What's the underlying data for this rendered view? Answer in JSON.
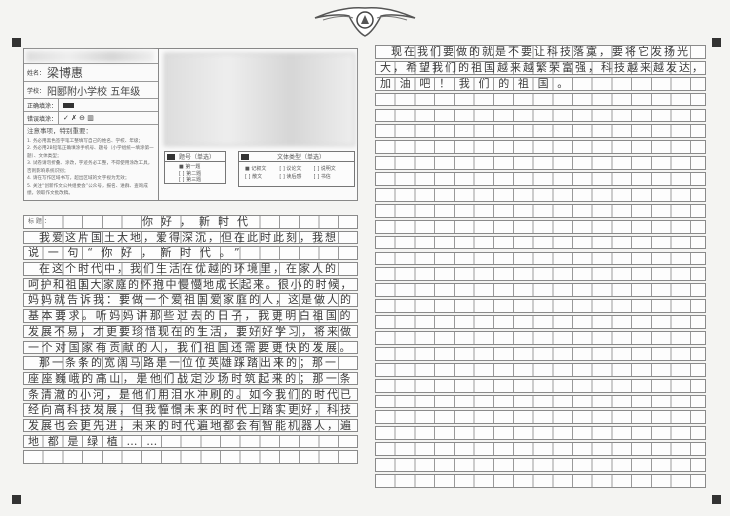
{
  "header": {
    "name_label": "姓名：",
    "name_value": "梁博惠",
    "school_label": "学校：",
    "school_value": "阳郾附小学校 五年级",
    "correct_label": "正确填涂：",
    "wrong_label": "错误填涂：",
    "wrong_samples": "✓ ✗ ⊖ ▥",
    "notes_title": "注意事项，特别重要：",
    "notes": [
      "1. 务必用黑色签字笔工整填写自己的姓名、学校、年级；",
      "2. 务必用2B铅笔正确填涂手机号、题号（小学组统一填涂第一题）、文体类型；",
      "3. 试卷请勿折叠、涂改，字迹务必工整，不得使用涂改工具，否则影响系统识别；",
      "4. 请在写作区域书写，超出区域的文字视为无效；",
      "5. 关注“创新作文公共组委会”公众号，报名、进群、查询成绩，领取作文批改稿。"
    ],
    "topic": {
      "title": "题号（单选）",
      "options": [
        "■ 第一题",
        "[ ] 第二题",
        "[ ] 第三题"
      ]
    },
    "genre": {
      "title": "文体类型（单选）",
      "options": [
        "■ 记叙文",
        "[ ] 议论文",
        "[ ] 说明文",
        "[ ] 散文",
        "[ ] 读后感",
        "[ ] 书信"
      ]
    }
  },
  "essay": {
    "title_label": "标 题 ：",
    "title": "你好，新时代",
    "left_rows": [
      "  我爱这片国土大地，爱得深沉，但在此时此刻，我想",
      "说一句“你好，新时代。”",
      "  在这个时代中，我们生活在优越的环境里，在家人的",
      "呵护和祖国大家庭的怀抱中慢慢地成长起来。很小的时候，",
      "妈妈就告诉我：要做一个爱祖国爱家庭的人，这是做人的",
      "基本要求。听妈妈讲那些过去的日子，我更明白祖国的",
      "发展不易，才更要珍惜现在的生活，要好好学习，将来做",
      "一个对国家有贡献的人，我们祖国还需要更快的发展。",
      "  那一条条的宽阔马路是一位位英雄踩踏出来的；那一",
      "座座巍峨的高山，是他们战定沙场时筑起来的；那一条",
      "条清澈的小河，是他们用泪水冲刷的。如今我们的时代已",
      "经向高科技发展，但我憧憬未来的时代上踏实更好，科技",
      "发展也会更先进，未来的时代遍地都会有智能机器人，遍",
      "地都是绿植……"
    ],
    "right_rows": [
      "  现在我们要做的就是不要让科技落寞，要将它发扬光",
      "大，希望我们的祖国越来越繁荣富强，科技越来越发达，",
      "加油吧！我们的祖国。"
    ]
  }
}
